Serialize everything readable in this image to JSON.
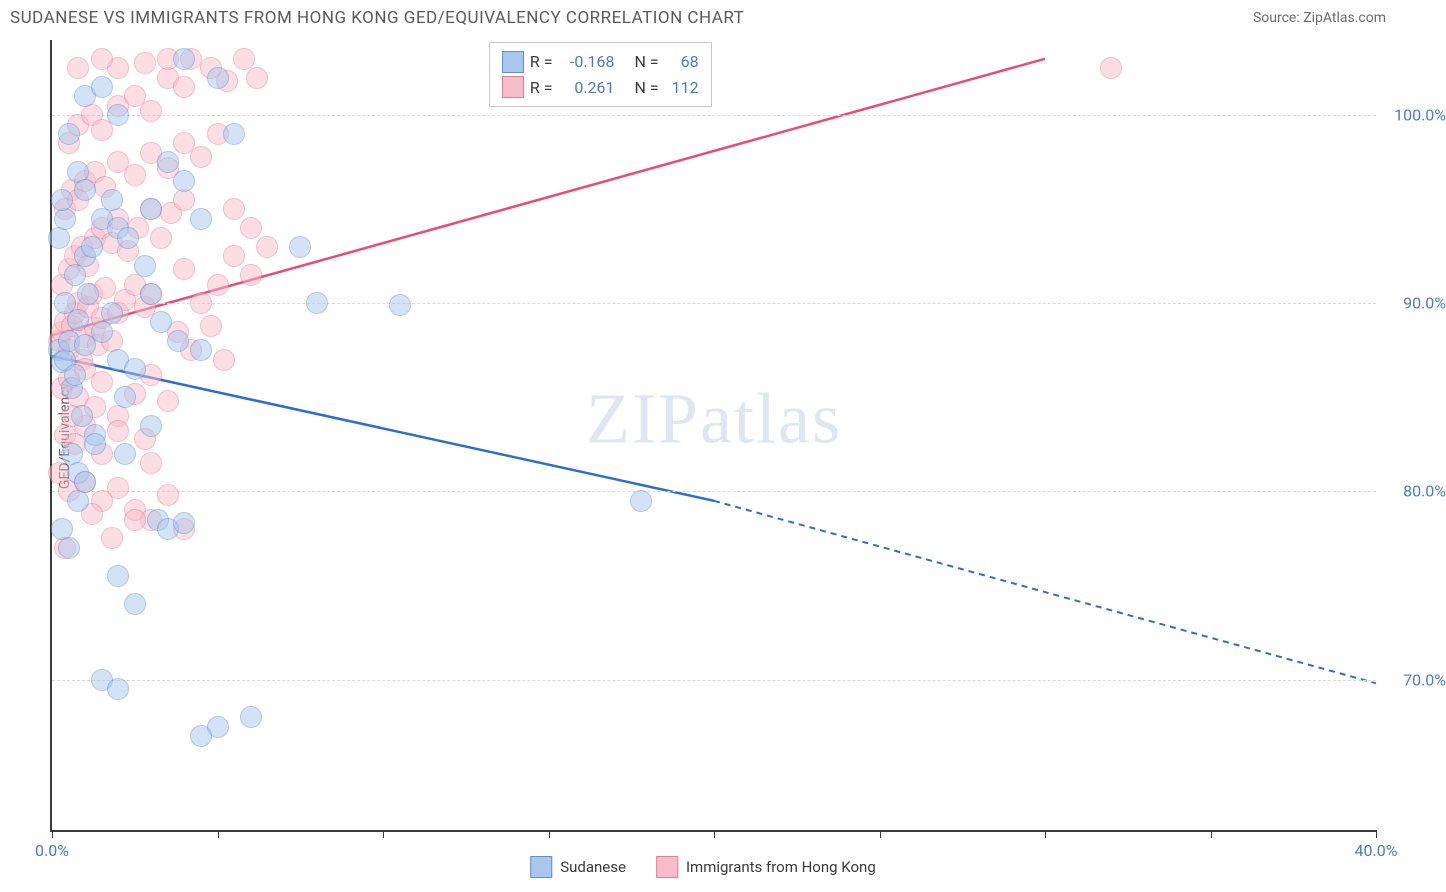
{
  "title": "SUDANESE VS IMMIGRANTS FROM HONG KONG GED/EQUIVALENCY CORRELATION CHART",
  "source_prefix": "Source: ",
  "source_name": "ZipAtlas.com",
  "ylabel": "GED/Equivalency",
  "watermark_a": "ZIP",
  "watermark_b": "atlas",
  "chart": {
    "type": "scatter",
    "xlim": [
      0,
      40
    ],
    "ylim": [
      62,
      104
    ],
    "xticks": [
      0,
      5,
      10,
      15,
      20,
      25,
      30,
      35,
      40
    ],
    "xtick_labels": {
      "0": "0.0%",
      "40": "40.0%"
    },
    "yticks": [
      70,
      80,
      90,
      100
    ],
    "ytick_labels": [
      "70.0%",
      "80.0%",
      "90.0%",
      "100.0%"
    ],
    "grid_color": "#d8d8d8",
    "axis_color": "#3a3a3a",
    "background_color": "#ffffff",
    "marker_radius": 11,
    "marker_opacity": 0.5
  },
  "series": [
    {
      "key": "sudanese",
      "label": "Sudanese",
      "color_fill": "#a9c7ec",
      "color_stroke": "#5b8fd6",
      "trend_color": "#2d6cd0",
      "R": "-0.168",
      "N": "68",
      "trend": {
        "x1": 0,
        "y1": 87.2,
        "x_solid_end": 20,
        "y_solid_end": 79.5,
        "x2": 40,
        "y2": 69.8
      },
      "points": [
        [
          0.2,
          87.5
        ],
        [
          0.3,
          86.9
        ],
        [
          0.4,
          87.0
        ],
        [
          0.5,
          88.0
        ],
        [
          0.6,
          85.5
        ],
        [
          0.7,
          86.2
        ],
        [
          0.8,
          89.1
        ],
        [
          0.9,
          84.0
        ],
        [
          1.0,
          87.8
        ],
        [
          1.1,
          90.5
        ],
        [
          1.3,
          83.0
        ],
        [
          0.6,
          82.0
        ],
        [
          0.8,
          81.0
        ],
        [
          1.5,
          88.5
        ],
        [
          1.8,
          89.5
        ],
        [
          2.0,
          87.0
        ],
        [
          2.2,
          85.0
        ],
        [
          2.5,
          86.5
        ],
        [
          0.4,
          90.0
        ],
        [
          0.7,
          91.5
        ],
        [
          1.0,
          92.5
        ],
        [
          1.2,
          93.0
        ],
        [
          1.5,
          94.5
        ],
        [
          1.8,
          95.5
        ],
        [
          2.0,
          94.0
        ],
        [
          2.3,
          93.5
        ],
        [
          2.8,
          92.0
        ],
        [
          3.0,
          90.5
        ],
        [
          3.3,
          89.0
        ],
        [
          3.8,
          88.0
        ],
        [
          4.0,
          96.5
        ],
        [
          4.5,
          87.5
        ],
        [
          5.0,
          102.0
        ],
        [
          5.5,
          99.0
        ],
        [
          3.2,
          78.5
        ],
        [
          3.5,
          78.0
        ],
        [
          4.0,
          78.3
        ],
        [
          2.0,
          75.5
        ],
        [
          2.5,
          74.0
        ],
        [
          4.0,
          103.0
        ],
        [
          5.0,
          67.5
        ],
        [
          4.5,
          67.0
        ],
        [
          6.0,
          68.0
        ],
        [
          1.5,
          70.0
        ],
        [
          2.0,
          69.5
        ],
        [
          7.5,
          93.0
        ],
        [
          8.0,
          90.0
        ],
        [
          10.5,
          89.9
        ],
        [
          17.8,
          79.5
        ],
        [
          0.3,
          78.0
        ],
        [
          0.5,
          77.0
        ],
        [
          0.8,
          79.5
        ],
        [
          1.0,
          80.5
        ],
        [
          1.3,
          82.5
        ],
        [
          3.0,
          83.5
        ],
        [
          2.2,
          82.0
        ],
        [
          1.0,
          101.0
        ],
        [
          1.5,
          101.5
        ],
        [
          2.0,
          100.0
        ],
        [
          0.5,
          99.0
        ],
        [
          0.2,
          93.5
        ],
        [
          0.4,
          94.5
        ],
        [
          0.3,
          95.5
        ],
        [
          0.8,
          97.0
        ],
        [
          1.0,
          96.0
        ],
        [
          3.5,
          97.5
        ],
        [
          3.0,
          95.0
        ],
        [
          4.5,
          94.5
        ]
      ]
    },
    {
      "key": "hongkong",
      "label": "Immigrants from Hong Kong",
      "color_fill": "#f8bdca",
      "color_stroke": "#e87b95",
      "trend_color": "#e94b77",
      "R": "0.261",
      "N": "112",
      "trend": {
        "x1": 0,
        "y1": 88.3,
        "x_solid_end": 30,
        "y_solid_end": 103.0,
        "x2": 30,
        "y2": 103.0
      },
      "points": [
        [
          0.2,
          88.0
        ],
        [
          0.3,
          88.5
        ],
        [
          0.4,
          89.0
        ],
        [
          0.5,
          87.5
        ],
        [
          0.6,
          88.8
        ],
        [
          0.7,
          89.5
        ],
        [
          0.8,
          90.0
        ],
        [
          0.9,
          87.0
        ],
        [
          1.0,
          88.2
        ],
        [
          1.1,
          89.8
        ],
        [
          1.2,
          90.5
        ],
        [
          1.3,
          88.7
        ],
        [
          1.4,
          87.8
        ],
        [
          1.5,
          89.2
        ],
        [
          1.6,
          90.8
        ],
        [
          1.8,
          88.0
        ],
        [
          2.0,
          89.5
        ],
        [
          2.2,
          90.2
        ],
        [
          2.5,
          91.0
        ],
        [
          2.8,
          89.8
        ],
        [
          3.0,
          90.5
        ],
        [
          0.3,
          91.0
        ],
        [
          0.5,
          91.8
        ],
        [
          0.7,
          92.5
        ],
        [
          0.9,
          93.0
        ],
        [
          1.1,
          92.0
        ],
        [
          1.3,
          93.5
        ],
        [
          1.5,
          94.0
        ],
        [
          1.8,
          93.2
        ],
        [
          2.0,
          94.5
        ],
        [
          2.3,
          92.8
        ],
        [
          2.6,
          94.0
        ],
        [
          3.0,
          95.0
        ],
        [
          3.3,
          93.5
        ],
        [
          3.6,
          94.8
        ],
        [
          4.0,
          95.5
        ],
        [
          0.4,
          95.0
        ],
        [
          0.6,
          96.0
        ],
        [
          0.8,
          95.5
        ],
        [
          1.0,
          96.5
        ],
        [
          1.3,
          97.0
        ],
        [
          1.6,
          96.2
        ],
        [
          2.0,
          97.5
        ],
        [
          2.5,
          96.8
        ],
        [
          3.0,
          98.0
        ],
        [
          3.5,
          97.2
        ],
        [
          4.0,
          98.5
        ],
        [
          4.5,
          97.8
        ],
        [
          5.0,
          99.0
        ],
        [
          0.5,
          98.5
        ],
        [
          0.8,
          99.5
        ],
        [
          1.2,
          100.0
        ],
        [
          1.5,
          99.2
        ],
        [
          2.0,
          100.5
        ],
        [
          2.5,
          101.0
        ],
        [
          3.0,
          100.2
        ],
        [
          3.5,
          102.0
        ],
        [
          4.0,
          101.5
        ],
        [
          4.8,
          102.5
        ],
        [
          5.3,
          101.8
        ],
        [
          5.8,
          103.0
        ],
        [
          6.2,
          102.0
        ],
        [
          0.3,
          85.5
        ],
        [
          0.5,
          86.0
        ],
        [
          0.8,
          85.0
        ],
        [
          1.0,
          86.5
        ],
        [
          1.3,
          84.5
        ],
        [
          1.5,
          85.8
        ],
        [
          2.0,
          84.0
        ],
        [
          2.5,
          85.2
        ],
        [
          3.0,
          86.2
        ],
        [
          3.5,
          84.8
        ],
        [
          0.4,
          83.0
        ],
        [
          0.7,
          82.5
        ],
        [
          1.0,
          83.5
        ],
        [
          1.5,
          82.0
        ],
        [
          2.0,
          83.2
        ],
        [
          2.8,
          82.8
        ],
        [
          3.0,
          81.5
        ],
        [
          0.5,
          80.0
        ],
        [
          1.0,
          80.5
        ],
        [
          1.5,
          79.5
        ],
        [
          2.0,
          80.2
        ],
        [
          2.5,
          79.0
        ],
        [
          3.0,
          78.5
        ],
        [
          3.5,
          79.8
        ],
        [
          4.0,
          78.0
        ],
        [
          4.0,
          91.8
        ],
        [
          4.5,
          90.0
        ],
        [
          5.0,
          91.0
        ],
        [
          5.5,
          92.5
        ],
        [
          6.0,
          91.5
        ],
        [
          6.5,
          93.0
        ],
        [
          3.8,
          88.5
        ],
        [
          4.2,
          87.5
        ],
        [
          4.8,
          88.8
        ],
        [
          5.2,
          87.0
        ],
        [
          2.5,
          78.5
        ],
        [
          1.8,
          77.5
        ],
        [
          1.2,
          78.8
        ],
        [
          32.0,
          102.5
        ],
        [
          3.5,
          103.0
        ],
        [
          4.2,
          103.0
        ],
        [
          2.8,
          102.8
        ],
        [
          2.0,
          102.5
        ],
        [
          1.5,
          103.0
        ],
        [
          0.8,
          102.5
        ],
        [
          0.4,
          77.0
        ],
        [
          0.2,
          81.0
        ],
        [
          0.6,
          84.0
        ],
        [
          5.5,
          95.0
        ],
        [
          6.0,
          94.0
        ]
      ]
    }
  ],
  "legend_box": {
    "R_label": "R =",
    "N_label": "N ="
  }
}
